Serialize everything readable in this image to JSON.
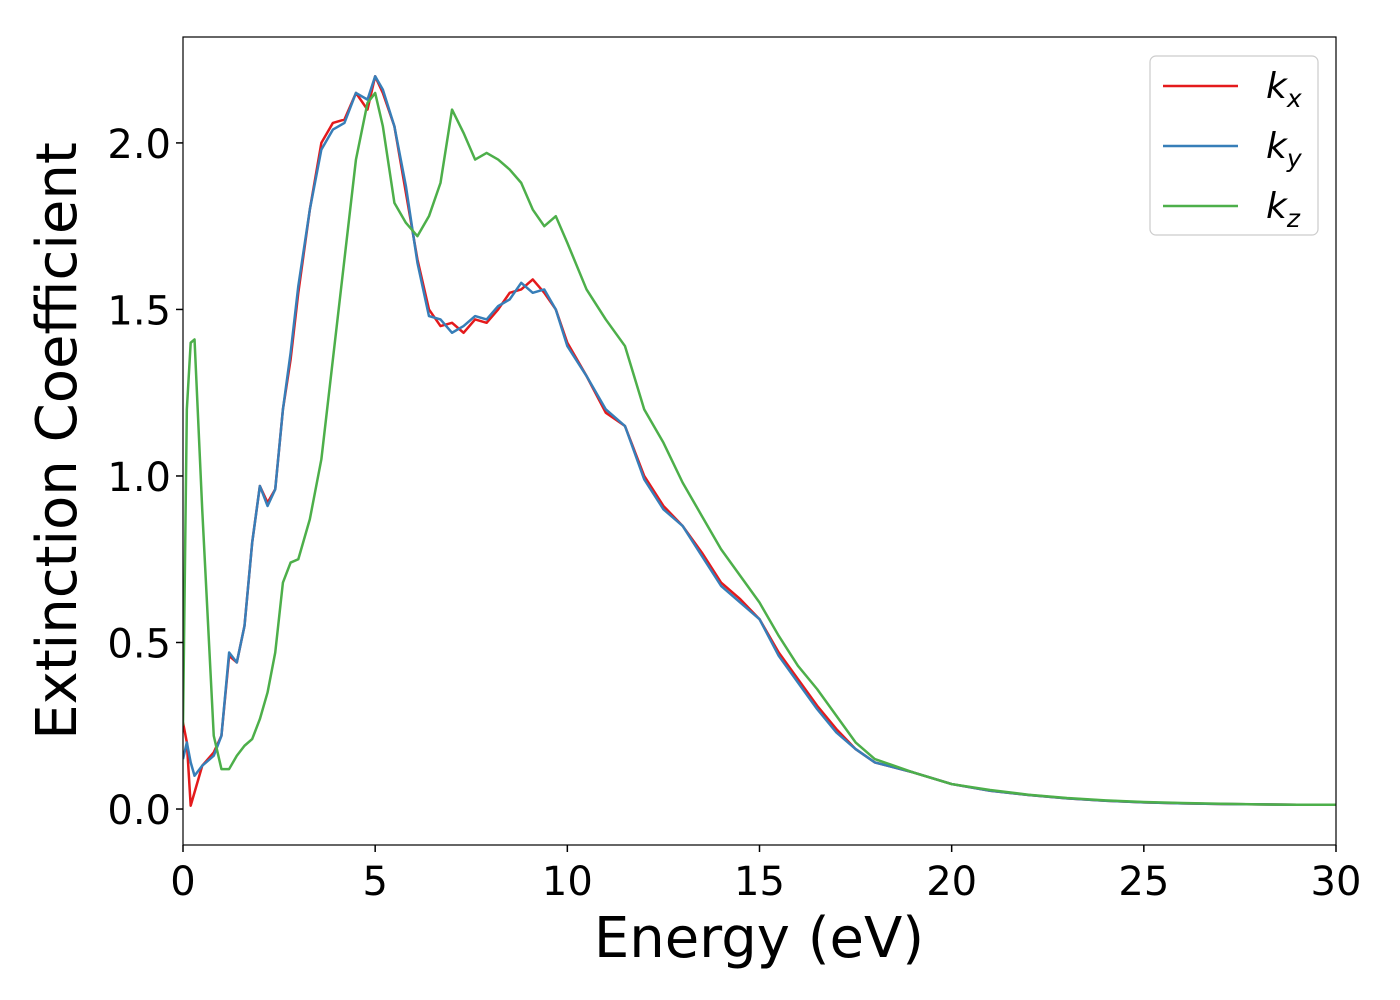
{
  "chart_data": {
    "type": "line",
    "xlabel": "Energy (eV)",
    "ylabel": "Extinction Coefficient",
    "x": [
      0,
      0.1,
      0.2,
      0.3,
      0.5,
      0.8,
      1.0,
      1.2,
      1.4,
      1.6,
      1.8,
      2.0,
      2.2,
      2.4,
      2.6,
      2.8,
      3.0,
      3.3,
      3.6,
      3.9,
      4.2,
      4.5,
      4.8,
      5.0,
      5.2,
      5.5,
      5.8,
      6.1,
      6.4,
      6.7,
      7.0,
      7.3,
      7.6,
      7.9,
      8.2,
      8.5,
      8.8,
      9.1,
      9.4,
      9.7,
      10.0,
      10.5,
      11,
      11.5,
      12,
      12.5,
      13,
      13.5,
      14,
      14.5,
      15,
      15.5,
      16,
      16.5,
      17,
      17.5,
      18,
      19,
      20,
      21,
      22,
      23,
      24,
      25,
      26,
      27,
      28,
      29,
      30
    ],
    "series": [
      {
        "name": "k_x",
        "color": "#e41a1c",
        "values": [
          0.26,
          0.2,
          0.01,
          0.05,
          0.13,
          0.17,
          0.22,
          0.46,
          0.44,
          0.55,
          0.8,
          0.97,
          0.92,
          0.96,
          1.2,
          1.35,
          1.55,
          1.8,
          2.0,
          2.06,
          2.07,
          2.15,
          2.1,
          2.2,
          2.15,
          2.05,
          1.85,
          1.65,
          1.5,
          1.45,
          1.46,
          1.43,
          1.47,
          1.46,
          1.5,
          1.55,
          1.56,
          1.59,
          1.55,
          1.5,
          1.4,
          1.3,
          1.19,
          1.15,
          1.0,
          0.91,
          0.85,
          0.77,
          0.68,
          0.63,
          0.57,
          0.47,
          0.39,
          0.31,
          0.24,
          0.18,
          0.14,
          0.11,
          0.075,
          0.055,
          0.042,
          0.032,
          0.025,
          0.02,
          0.017,
          0.015,
          0.014,
          0.013,
          0.013
        ]
      },
      {
        "name": "k_y",
        "color": "#377eb8",
        "values": [
          0.15,
          0.2,
          0.14,
          0.1,
          0.13,
          0.16,
          0.22,
          0.47,
          0.44,
          0.55,
          0.8,
          0.97,
          0.91,
          0.96,
          1.2,
          1.37,
          1.57,
          1.8,
          1.98,
          2.04,
          2.06,
          2.15,
          2.13,
          2.2,
          2.16,
          2.05,
          1.87,
          1.64,
          1.48,
          1.47,
          1.43,
          1.45,
          1.48,
          1.47,
          1.51,
          1.53,
          1.58,
          1.55,
          1.56,
          1.5,
          1.39,
          1.3,
          1.2,
          1.15,
          0.99,
          0.9,
          0.85,
          0.76,
          0.67,
          0.62,
          0.57,
          0.46,
          0.38,
          0.3,
          0.23,
          0.18,
          0.14,
          0.11,
          0.075,
          0.055,
          0.042,
          0.032,
          0.025,
          0.02,
          0.017,
          0.015,
          0.014,
          0.013,
          0.013
        ]
      },
      {
        "name": "k_z",
        "color": "#4daf4a",
        "values": [
          0.25,
          1.2,
          1.4,
          1.41,
          0.9,
          0.22,
          0.12,
          0.12,
          0.16,
          0.19,
          0.21,
          0.27,
          0.35,
          0.47,
          0.68,
          0.74,
          0.75,
          0.87,
          1.05,
          1.35,
          1.65,
          1.95,
          2.12,
          2.15,
          2.05,
          1.82,
          1.76,
          1.72,
          1.78,
          1.88,
          2.1,
          2.03,
          1.95,
          1.97,
          1.95,
          1.92,
          1.88,
          1.8,
          1.75,
          1.78,
          1.7,
          1.56,
          1.47,
          1.39,
          1.2,
          1.1,
          0.98,
          0.88,
          0.78,
          0.7,
          0.62,
          0.52,
          0.43,
          0.36,
          0.28,
          0.2,
          0.15,
          0.11,
          0.075,
          0.057,
          0.043,
          0.033,
          0.026,
          0.021,
          0.018,
          0.016,
          0.014,
          0.013,
          0.013
        ]
      }
    ],
    "xlim": [
      0,
      30
    ],
    "xticks": [
      0,
      5,
      10,
      15,
      20,
      25,
      30
    ],
    "ylim": [
      -0.108,
      2.318
    ],
    "yticks": [
      {
        "value": 0,
        "label": "0.0"
      },
      0.5,
      {
        "value": 1,
        "label": "1.0"
      },
      1.5,
      {
        "value": 2,
        "label": "2.0"
      }
    ],
    "grid": false,
    "legend": "upper right"
  }
}
